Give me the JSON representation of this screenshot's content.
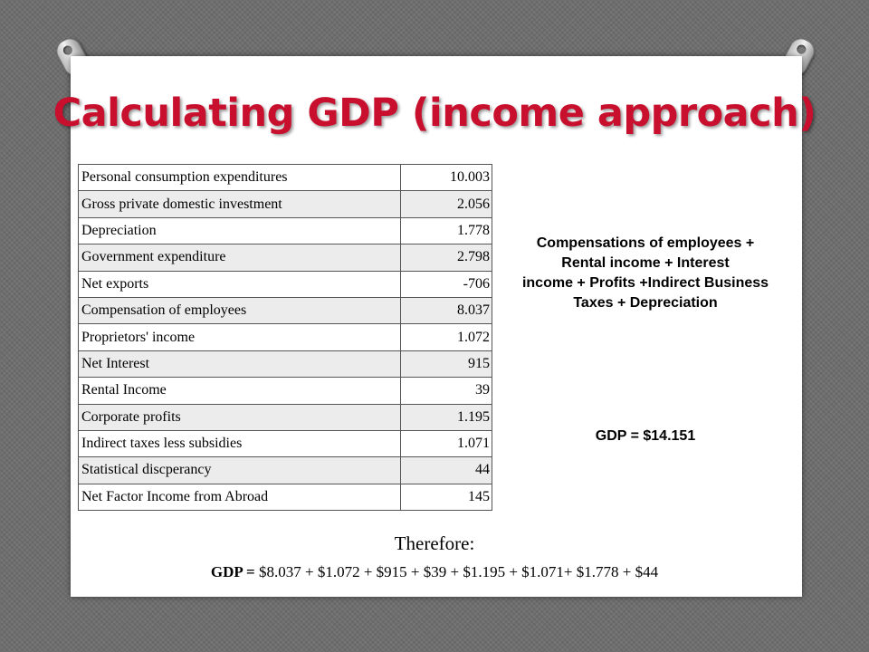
{
  "title": "Calculating GDP (income approach)",
  "table": [
    {
      "label": "Personal consumption expenditures",
      "value": "10.003"
    },
    {
      "label": "Gross private domestic investment",
      "value": "2.056"
    },
    {
      "label": "Depreciation",
      "value": "1.778"
    },
    {
      "label": "Government expenditure",
      "value": "2.798"
    },
    {
      "label": "Net exports",
      "value": "-706"
    },
    {
      "label": "Compensation of employees",
      "value": "8.037"
    },
    {
      "label": "Proprietors' income",
      "value": "1.072"
    },
    {
      "label": "Net Interest",
      "value": "915"
    },
    {
      "label": "Rental Income",
      "value": "39"
    },
    {
      "label": "Corporate profits",
      "value": "1.195"
    },
    {
      "label": "Indirect taxes less subsidies",
      "value": "1.071"
    },
    {
      "label": "Statistical discperancy",
      "value": "44"
    },
    {
      "label": "Net Factor Income from Abroad",
      "value": "145"
    }
  ],
  "formula_lines": [
    "Compensations of employees +",
    "Rental income + Interest",
    "income + Profits +Indirect Business",
    "Taxes + Depreciation"
  ],
  "gdp_total": "GDP = $14.151",
  "therefore": "Therefore:",
  "calc": {
    "prefix": "GDP =",
    "expression": "$8.037 + $1.072 + $915 + $39 + $1.195 + $1.071+ $1.778 + $44"
  },
  "colors": {
    "title": "#c8102e",
    "background": "#6d6d6d",
    "slide": "#ffffff"
  }
}
